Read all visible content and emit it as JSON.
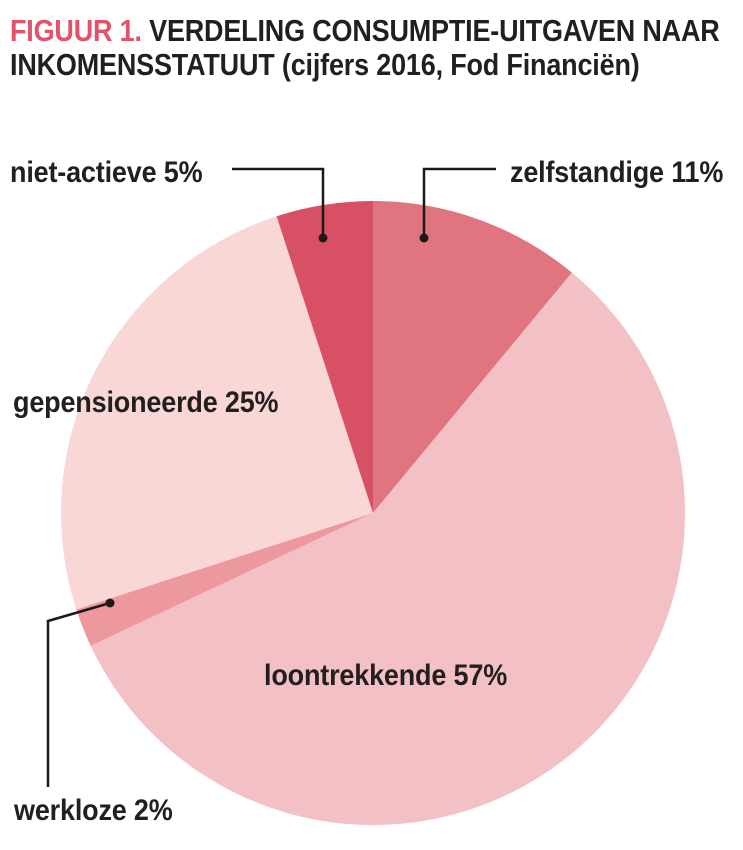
{
  "figure": {
    "title_prefix": "FIGUUR 1.",
    "title_line1_rest": " VERDELING CONSUMPTIE-UITGAVEN NAAR",
    "title_line2": "INKOMENSSTATUUT (cijfers 2016, Fod Financiën)"
  },
  "colors": {
    "title_accent": "#e25268",
    "text": "#231f20",
    "leader_line": "#1a1a1a",
    "background": "#ffffff"
  },
  "chart_data": {
    "type": "pie",
    "title": "FIGUUR 1. VERDELING CONSUMPTIE-UITGAVEN NAAR INKOMENSSTATUUT (cijfers 2016, Fod Financiën)",
    "source_note": "cijfers 2016, Fod Financiën",
    "start_angle_deg": 0,
    "direction": "clockwise",
    "legend": "none",
    "slices": [
      {
        "label": "zelfstandige",
        "value": 11,
        "display": "zelfstandige 11%",
        "color": "#e0747f"
      },
      {
        "label": "loontrekkende",
        "value": 57,
        "display": "loontrekkende 57%",
        "color": "#f3c1c5"
      },
      {
        "label": "werkloze",
        "value": 2,
        "display": "werkloze 2%",
        "color": "#ec989e"
      },
      {
        "label": "gepensioneerde",
        "value": 25,
        "display": "gepensioneerde 25%",
        "color": "#f8d7d6"
      },
      {
        "label": "niet-actieve",
        "value": 5,
        "display": "niet-actieve 5%",
        "color": "#d85063"
      }
    ]
  }
}
